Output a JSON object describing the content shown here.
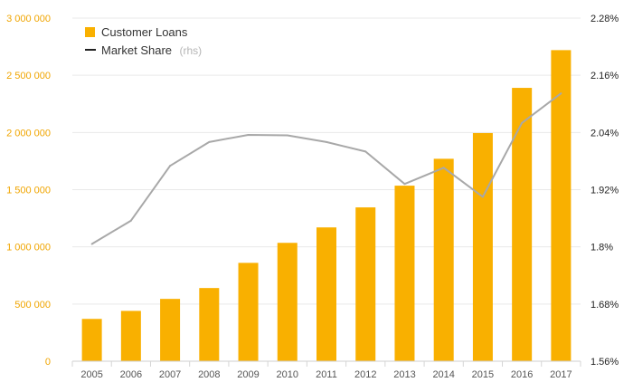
{
  "chart_data": {
    "type": "bar",
    "categories": [
      "2005",
      "2006",
      "2007",
      "2008",
      "2009",
      "2010",
      "2011",
      "2012",
      "2013",
      "2014",
      "2015",
      "2016",
      "2017"
    ],
    "series": [
      {
        "name": "Customer Loans",
        "type": "bar",
        "axis": "left",
        "color": "#f9b000",
        "values": [
          370000,
          440000,
          545000,
          640000,
          860000,
          1035000,
          1170000,
          1345000,
          1535000,
          1770000,
          1995000,
          2390000,
          2720000
        ]
      },
      {
        "name": "Market Share",
        "type": "line",
        "axis": "right",
        "color": "#a8a8a8",
        "values": [
          1.806,
          1.855,
          1.97,
          2.02,
          2.035,
          2.034,
          2.02,
          2.0,
          1.932,
          1.966,
          1.905,
          2.06,
          2.122
        ]
      }
    ],
    "legend": {
      "placement": "top-left",
      "items": [
        {
          "label": "Customer Loans",
          "sub": ""
        },
        {
          "label": "Market Share",
          "sub": "(rhs)"
        }
      ]
    },
    "y_left": {
      "ylim": [
        0,
        3000000
      ],
      "ticks": [
        0,
        500000,
        1000000,
        1500000,
        2000000,
        2500000,
        3000000
      ],
      "tick_labels": [
        "0",
        "500 000",
        "1 000 000",
        "1 500 000",
        "2 000 000",
        "2 500 000",
        "3 000 000"
      ],
      "color": "#f0a500"
    },
    "y_right": {
      "ylim": [
        1.56,
        2.28
      ],
      "ticks": [
        1.56,
        1.68,
        1.8,
        1.92,
        2.04,
        2.16,
        2.28
      ],
      "tick_labels": [
        "1.56%",
        "1.68%",
        "1.8%",
        "1.92%",
        "2.04%",
        "2.16%",
        "2.28%"
      ],
      "color": "#222222"
    },
    "grid": true,
    "title": "",
    "xlabel": "",
    "ylabel": ""
  }
}
